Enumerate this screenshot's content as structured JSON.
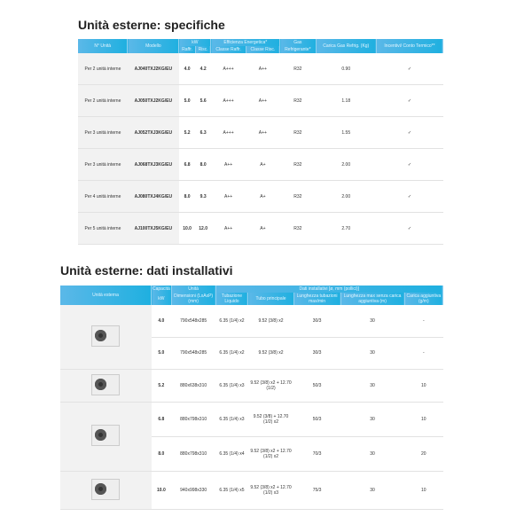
{
  "spec": {
    "title": "Unità esterne: specifiche",
    "headers": {
      "units": "N° Unità",
      "model": "Modello",
      "kw": "kW",
      "raffr": "Raffr.",
      "risc": "Risc.",
      "eff": "Efficienza Energetica*",
      "class_raffr": "Classe Raffr.",
      "class_risc": "Classe Risc.",
      "gas": "Gas",
      "refr": "Refrigerante*",
      "charge": "Carica Gas Refrig. (Kg)",
      "incentive": "Incentivi/ Conto Termico**"
    },
    "rows": [
      [
        "Per 2 unità interne",
        "AJ040TXJ2KG/EU",
        "4.0",
        "4.2",
        "A+++",
        "A++",
        "R32",
        "0.90",
        "✓"
      ],
      [
        "Per 2 unità interne",
        "AJ050TXJ2KG/EU",
        "5.0",
        "5.6",
        "A+++",
        "A++",
        "R32",
        "1.18",
        "✓"
      ],
      [
        "Per 3 unità interne",
        "AJ052TXJ3KG/EU",
        "5.2",
        "6.3",
        "A+++",
        "A++",
        "R32",
        "1.55",
        "✓"
      ],
      [
        "Per 3 unità interne",
        "AJ068TXJ3KG/EU",
        "6.8",
        "8.0",
        "A++",
        "A+",
        "R32",
        "2.00",
        "✓"
      ],
      [
        "Per 4 unità interne",
        "AJ080TXJ4KG/EU",
        "8.0",
        "9.3",
        "A++",
        "A+",
        "R32",
        "2.00",
        "✓"
      ],
      [
        "Per 5 unità interne",
        "AJ100TXJ5KG/EU",
        "10.0",
        "12.0",
        "A++",
        "A+",
        "R32",
        "2.70",
        "✓"
      ]
    ]
  },
  "install": {
    "title": "Unità esterne: dati installativi",
    "headers": {
      "outdoor": "Unità esterna",
      "capacity": "Capacità",
      "kw": "kW",
      "unit": "Unità",
      "dims": "Dimensioni (LxAxP) (mm)",
      "data": "Dati installativi [ø, mm (pollici)]",
      "liquid": "Tubazione Liquido",
      "gas": "Tubo principale",
      "length": "Lunghezza tubazioni max/min",
      "maxlen": "Lunghezza max senza carica aggiuntiva (m)",
      "extra": "Carica aggiuntiva (g/m)"
    },
    "rows": [
      [
        "4.0",
        "790x548x285",
        "6.35 (1/4) x2",
        "9.52 (3/8) x2",
        "30/3",
        "30",
        "-"
      ],
      [
        "5.0",
        "790x548x285",
        "6.35 (1/4) x2",
        "9.52 (3/8) x2",
        "30/3",
        "30",
        "-"
      ],
      [
        "5.2",
        "880x638x310",
        "6.35 (1/4) x3",
        "9.52 (3/8) x2 + 12.70 (1/2)",
        "50/3",
        "30",
        "10"
      ],
      [
        "6.8",
        "880x798x310",
        "6.35 (1/4) x3",
        "9.52 (3/8) + 12.70 (1/2) x2",
        "50/3",
        "30",
        "10"
      ],
      [
        "8.0",
        "880x798x310",
        "6.35 (1/4) x4",
        "9.52 (3/8) x2 + 12.70 (1/2) x2",
        "70/3",
        "30",
        "20"
      ],
      [
        "10.0",
        "940x998x330",
        "6.35 (1/4) x5",
        "9.52 (3/8) x2 + 12.70 (1/2) x3",
        "75/3",
        "30",
        "10"
      ]
    ]
  }
}
